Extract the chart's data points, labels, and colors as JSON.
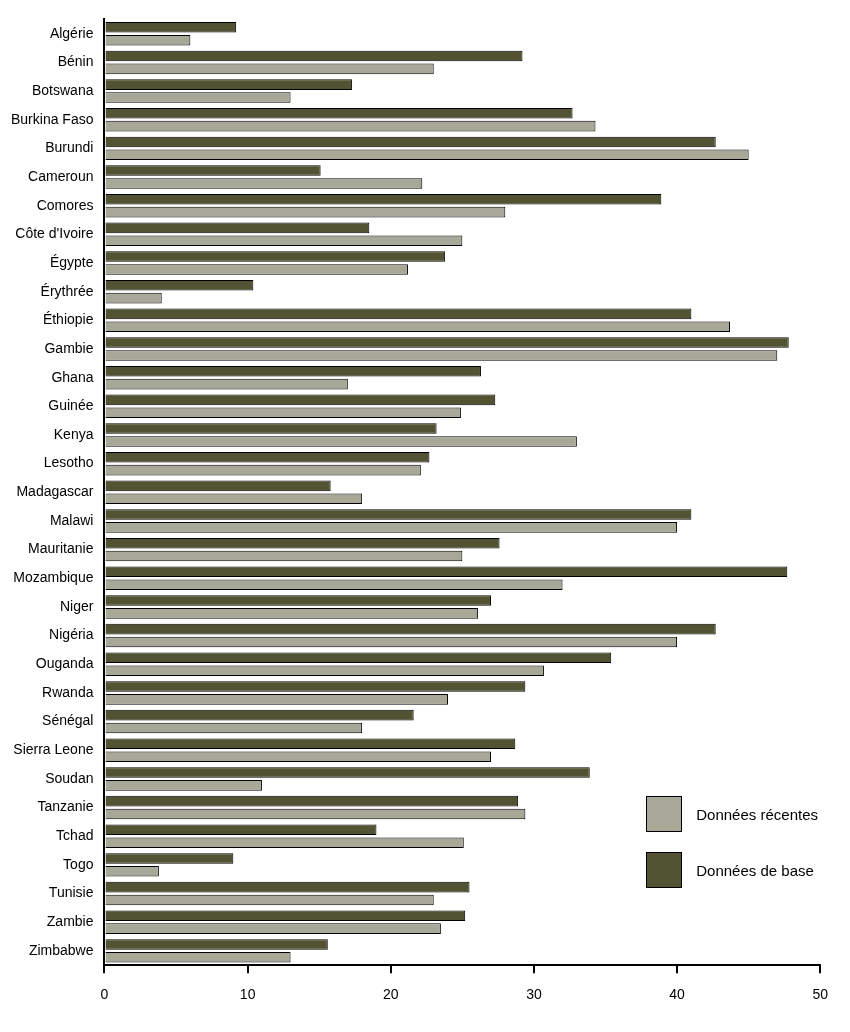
{
  "chart_data": {
    "type": "bar",
    "orientation": "horizontal",
    "categories": [
      "Algérie",
      "Bénin",
      "Botswana",
      "Burkina Faso",
      "Burundi",
      "Cameroun",
      "Comores",
      "Côte d'Ivoire",
      "Égypte",
      "Érythrée",
      "Éthiopie",
      "Gambie",
      "Ghana",
      "Guinée",
      "Kenya",
      "Lesotho",
      "Madagascar",
      "Malawi",
      "Mauritanie",
      "Mozambique",
      "Niger",
      "Nigéria",
      "Ouganda",
      "Rwanda",
      "Sénégal",
      "Sierra Leone",
      "Soudan",
      "Tanzanie",
      "Tchad",
      "Togo",
      "Tunisie",
      "Zambie",
      "Zimbabwe"
    ],
    "series": [
      {
        "name": "Données récentes",
        "color": "#a8a898",
        "values": [
          6.0,
          23.0,
          13.0,
          34.3,
          45.0,
          22.2,
          28.0,
          25.0,
          21.2,
          4.0,
          43.7,
          47.0,
          17.0,
          24.9,
          33.0,
          22.1,
          18.0,
          40.0,
          25.0,
          32.0,
          26.1,
          40.0,
          30.7,
          24.0,
          18.0,
          27.0,
          11.0,
          29.4,
          25.1,
          3.8,
          23.0,
          23.5,
          13.0
        ]
      },
      {
        "name": "Données de base",
        "color": "#525333",
        "values": [
          9.2,
          29.2,
          17.3,
          32.7,
          42.7,
          15.1,
          38.9,
          18.5,
          23.8,
          10.4,
          41.0,
          47.8,
          26.3,
          27.3,
          23.2,
          22.7,
          15.8,
          41.0,
          27.6,
          47.7,
          27.0,
          42.7,
          35.4,
          29.4,
          21.6,
          28.7,
          33.9,
          28.9,
          19.0,
          9.0,
          25.5,
          25.2,
          15.6
        ]
      }
    ],
    "xlim": [
      0,
      50
    ],
    "xticks": [
      0,
      10,
      20,
      30,
      40,
      50
    ],
    "grid": false,
    "legend": "bottom right"
  }
}
